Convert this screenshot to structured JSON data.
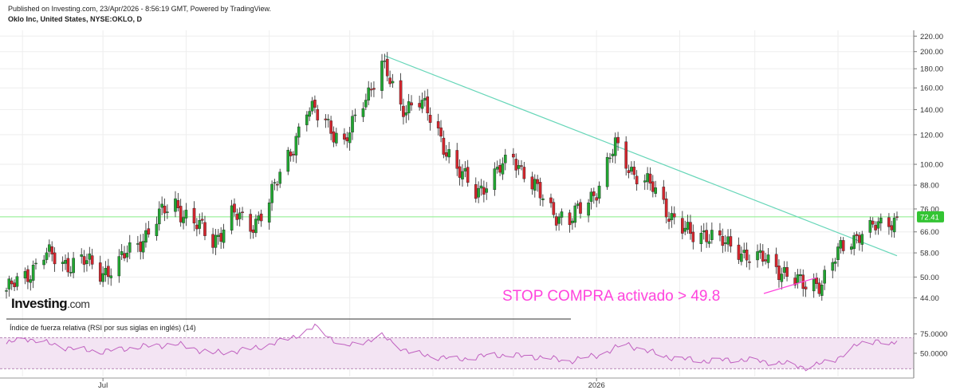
{
  "header": {
    "published": "Published on Investing.com, 23/Apr/2026 - 8:56:19 GMT, Powered by TradingView.",
    "symbol": "Oklo Inc, United States, NYSE:OKLO, D"
  },
  "logo": {
    "main": "Investing",
    "suffix": ".com"
  },
  "colors": {
    "up": "#21a631",
    "down": "#d3262e",
    "trendline": "#66d6b8",
    "price_line": "#88ee88",
    "price_badge": "#33c433",
    "annotation": "#ff44dd",
    "rsi_line": "#c060c0",
    "rsi_band": "#f3e4f3"
  },
  "chart_data": [
    {
      "type": "candlestick",
      "y_scale": "log",
      "y_ticks": [
        "220.00",
        "200.00",
        "180.00",
        "160.00",
        "140.00",
        "120.00",
        "100.00",
        "88.00",
        "76.00",
        "66.00",
        "58.00",
        "50.00",
        "44.00"
      ],
      "x_ticks": [
        {
          "label": "Jul",
          "date": "2025-07-01"
        },
        {
          "label": "2026",
          "date": "2026-01-01"
        }
      ],
      "x_range": [
        "2025-05-26",
        "2026-04-23"
      ],
      "ylim": [
        39,
        228
      ],
      "last_price": "72.41",
      "trendline": {
        "from": {
          "date": "2025-10-14",
          "price": 195
        },
        "to": {
          "date": "2026-04-23",
          "price": 57
        }
      },
      "annotation": {
        "text": "STOP COMPRA activado > 49.8",
        "target": {
          "date": "2026-03-24",
          "price": 49.8
        }
      },
      "anchors": [
        [
          "2025-05-26",
          46
        ],
        [
          "2025-06-02",
          50
        ],
        [
          "2025-06-09",
          58
        ],
        [
          "2025-06-16",
          54
        ],
        [
          "2025-06-23",
          56
        ],
        [
          "2025-06-30",
          51
        ],
        [
          "2025-07-07",
          55
        ],
        [
          "2025-07-14",
          61
        ],
        [
          "2025-07-21",
          72
        ],
        [
          "2025-07-28",
          78
        ],
        [
          "2025-08-04",
          70
        ],
        [
          "2025-08-11",
          62
        ],
        [
          "2025-08-18",
          74
        ],
        [
          "2025-08-25",
          68
        ],
        [
          "2025-09-01",
          80
        ],
        [
          "2025-09-08",
          105
        ],
        [
          "2025-09-15",
          140
        ],
        [
          "2025-09-22",
          132
        ],
        [
          "2025-09-29",
          112
        ],
        [
          "2025-10-06",
          148
        ],
        [
          "2025-10-13",
          185
        ],
        [
          "2025-10-20",
          142
        ],
        [
          "2025-10-27",
          148
        ],
        [
          "2025-11-03",
          122
        ],
        [
          "2025-11-10",
          96
        ],
        [
          "2025-11-17",
          85
        ],
        [
          "2025-11-24",
          93
        ],
        [
          "2025-12-01",
          106
        ],
        [
          "2025-12-08",
          88
        ],
        [
          "2025-12-15",
          76
        ],
        [
          "2025-12-22",
          70
        ],
        [
          "2026-01-02",
          88
        ],
        [
          "2026-01-08",
          112
        ],
        [
          "2026-01-15",
          95
        ],
        [
          "2026-01-22",
          86
        ],
        [
          "2026-01-29",
          73
        ],
        [
          "2026-02-05",
          64
        ],
        [
          "2026-02-12",
          66
        ],
        [
          "2026-02-19",
          60
        ],
        [
          "2026-02-26",
          58
        ],
        [
          "2026-03-05",
          55
        ],
        [
          "2026-03-12",
          52
        ],
        [
          "2026-03-19",
          47
        ],
        [
          "2026-03-26",
          49
        ],
        [
          "2026-04-02",
          59
        ],
        [
          "2026-04-09",
          66
        ],
        [
          "2026-04-16",
          68
        ],
        [
          "2026-04-23",
          72.41
        ]
      ]
    },
    {
      "type": "line",
      "title": "Índice de fuerza relativa (RSI por sus siglas en inglés) (14)",
      "y_ticks": [
        "75.0000",
        "50.0000"
      ],
      "ylim": [
        20,
        84
      ],
      "band": [
        30,
        70
      ],
      "anchors": [
        [
          "2025-05-26",
          62
        ],
        [
          "2025-06-02",
          70
        ],
        [
          "2025-06-16",
          58
        ],
        [
          "2025-06-30",
          52
        ],
        [
          "2025-07-14",
          58
        ],
        [
          "2025-07-28",
          62
        ],
        [
          "2025-08-11",
          50
        ],
        [
          "2025-08-25",
          55
        ],
        [
          "2025-09-08",
          68
        ],
        [
          "2025-09-18",
          84
        ],
        [
          "2025-09-29",
          58
        ],
        [
          "2025-10-13",
          72
        ],
        [
          "2025-10-24",
          50
        ],
        [
          "2025-11-10",
          42
        ],
        [
          "2025-11-24",
          48
        ],
        [
          "2025-12-08",
          46
        ],
        [
          "2025-12-22",
          40
        ],
        [
          "2026-01-02",
          48
        ],
        [
          "2026-01-12",
          62
        ],
        [
          "2026-01-26",
          46
        ],
        [
          "2026-02-09",
          40
        ],
        [
          "2026-02-23",
          42
        ],
        [
          "2026-03-09",
          38
        ],
        [
          "2026-03-20",
          32
        ],
        [
          "2026-03-30",
          40
        ],
        [
          "2026-04-09",
          62
        ],
        [
          "2026-04-16",
          67
        ],
        [
          "2026-04-20",
          58
        ],
        [
          "2026-04-23",
          66
        ]
      ]
    }
  ]
}
